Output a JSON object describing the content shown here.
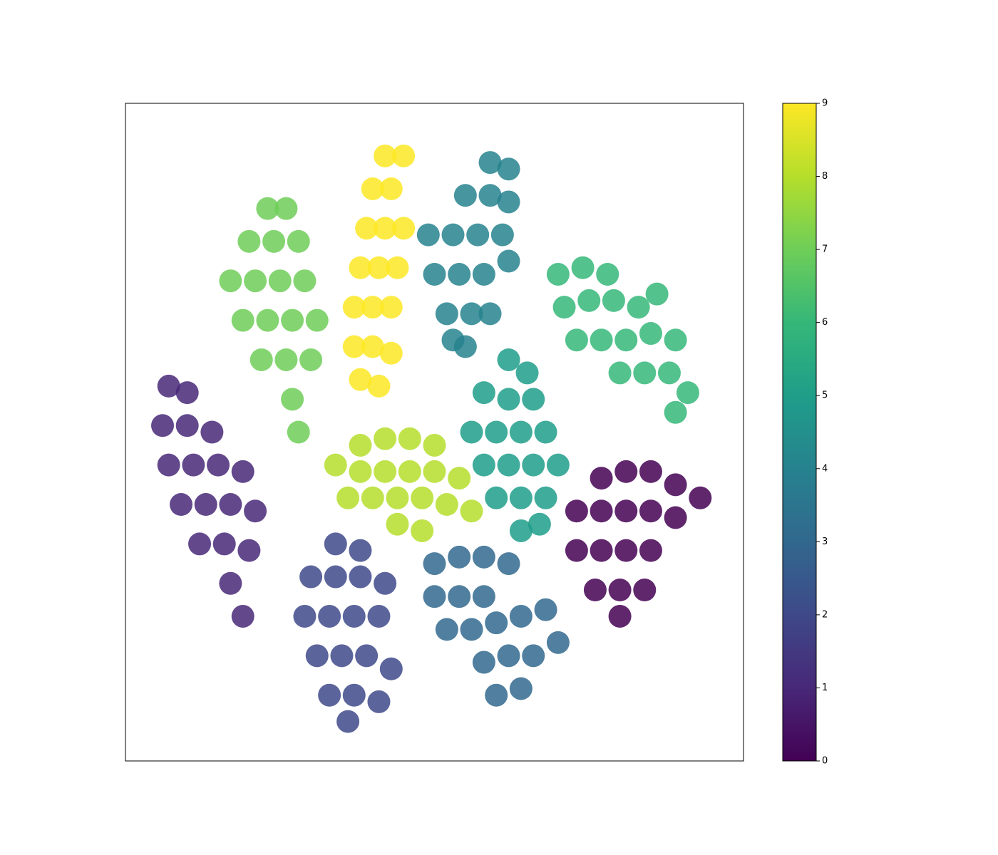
{
  "chart_data": {
    "type": "scatter",
    "colormap": "viridis",
    "xlim": [
      0,
      100
    ],
    "ylim": [
      0,
      100
    ],
    "clim": [
      0,
      9
    ],
    "cticks": [
      0,
      1,
      2,
      3,
      4,
      5,
      6,
      7,
      8,
      9
    ],
    "x": [
      38,
      41,
      37,
      40,
      43,
      37,
      40,
      43,
      38,
      41,
      44,
      39,
      42,
      45,
      40,
      43,
      45,
      42,
      23,
      26,
      20,
      24,
      28,
      17,
      21,
      25,
      29,
      19,
      23,
      27,
      31,
      22,
      26,
      30,
      27,
      28,
      59,
      62,
      55,
      59,
      62,
      49,
      53,
      57,
      61,
      50,
      54,
      58,
      62,
      52,
      56,
      59,
      55,
      53,
      70,
      74,
      78,
      71,
      75,
      79,
      83,
      86,
      73,
      77,
      81,
      85,
      89,
      80,
      84,
      88,
      91,
      89,
      62,
      65,
      58,
      62,
      66,
      56,
      60,
      64,
      68,
      58,
      62,
      66,
      70,
      60,
      64,
      68,
      64,
      67,
      38,
      42,
      46,
      50,
      34,
      38,
      42,
      46,
      50,
      54,
      36,
      40,
      44,
      48,
      52,
      56,
      44,
      48,
      77,
      81,
      85,
      89,
      93,
      73,
      77,
      81,
      85,
      89,
      73,
      77,
      81,
      85,
      76,
      80,
      84,
      80,
      7,
      10,
      6,
      10,
      14,
      7,
      11,
      15,
      19,
      9,
      13,
      17,
      21,
      12,
      16,
      20,
      17,
      19,
      34,
      38,
      30,
      34,
      38,
      42,
      29,
      33,
      37,
      41,
      31,
      35,
      39,
      43,
      33,
      37,
      41,
      36,
      50,
      54,
      58,
      62,
      50,
      54,
      58,
      52,
      56,
      60,
      64,
      68,
      58,
      62,
      66,
      70,
      60,
      64
    ],
    "y": [
      58,
      57,
      63,
      63,
      62,
      69,
      69,
      69,
      75,
      75,
      75,
      81,
      81,
      81,
      87,
      87,
      92,
      92,
      84,
      84,
      79,
      79,
      79,
      73,
      73,
      73,
      73,
      67,
      67,
      67,
      67,
      61,
      61,
      61,
      55,
      50,
      91,
      90,
      86,
      86,
      85,
      80,
      80,
      80,
      80,
      74,
      74,
      74,
      76,
      68,
      68,
      68,
      63,
      64,
      74,
      75,
      74,
      69,
      70,
      70,
      69,
      71,
      64,
      64,
      64,
      65,
      64,
      59,
      59,
      59,
      56,
      53,
      61,
      59,
      56,
      55,
      55,
      50,
      50,
      50,
      50,
      45,
      45,
      45,
      45,
      40,
      40,
      40,
      35,
      36,
      48,
      49,
      49,
      48,
      45,
      44,
      44,
      44,
      44,
      43,
      40,
      40,
      40,
      40,
      39,
      38,
      36,
      35,
      43,
      44,
      44,
      42,
      40,
      38,
      38,
      38,
      38,
      37,
      32,
      32,
      32,
      32,
      26,
      26,
      26,
      22,
      57,
      56,
      51,
      51,
      50,
      45,
      45,
      45,
      44,
      39,
      39,
      39,
      38,
      33,
      33,
      32,
      27,
      22,
      33,
      32,
      28,
      28,
      28,
      27,
      22,
      22,
      22,
      22,
      16,
      16,
      16,
      14,
      10,
      10,
      9,
      6,
      30,
      31,
      31,
      30,
      25,
      25,
      25,
      20,
      20,
      21,
      22,
      23,
      15,
      16,
      16,
      18,
      10,
      11
    ],
    "c": [
      9,
      9,
      9,
      9,
      9,
      9,
      9,
      9,
      9,
      9,
      9,
      9,
      9,
      9,
      9,
      9,
      9,
      9,
      7,
      7,
      7,
      7,
      7,
      7,
      7,
      7,
      7,
      7,
      7,
      7,
      7,
      7,
      7,
      7,
      7,
      7,
      4,
      4,
      4,
      4,
      4,
      4,
      4,
      4,
      4,
      4,
      4,
      4,
      4,
      4,
      4,
      4,
      4,
      4,
      6,
      6,
      6,
      6,
      6,
      6,
      6,
      6,
      6,
      6,
      6,
      6,
      6,
      6,
      6,
      6,
      6,
      6,
      5,
      5,
      5,
      5,
      5,
      5,
      5,
      5,
      5,
      5,
      5,
      5,
      5,
      5,
      5,
      5,
      5,
      5,
      8,
      8,
      8,
      8,
      8,
      8,
      8,
      8,
      8,
      8,
      8,
      8,
      8,
      8,
      8,
      8,
      8,
      8,
      0,
      0,
      0,
      0,
      0,
      0,
      0,
      0,
      0,
      0,
      0,
      0,
      0,
      0,
      0,
      0,
      0,
      0,
      1,
      1,
      1,
      1,
      1,
      1,
      1,
      1,
      1,
      1,
      1,
      1,
      1,
      1,
      1,
      1,
      1,
      1,
      2,
      2,
      2,
      2,
      2,
      2,
      2,
      2,
      2,
      2,
      2,
      2,
      2,
      2,
      2,
      2,
      2,
      2,
      3,
      3,
      3,
      3,
      3,
      3,
      3,
      3,
      3,
      3,
      3,
      3,
      3,
      3,
      3,
      3,
      3,
      3
    ]
  }
}
